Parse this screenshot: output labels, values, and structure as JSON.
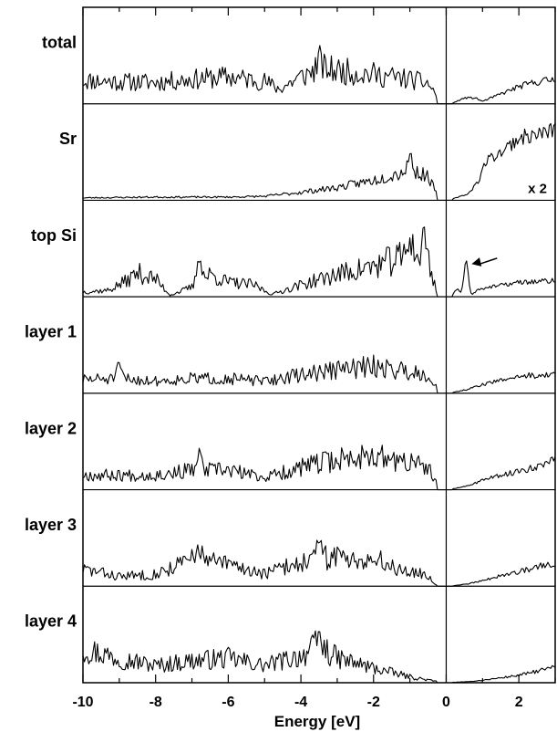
{
  "chart_data": {
    "type": "line",
    "xlabel": "Energy [eV]",
    "xlim": [
      -10,
      3
    ],
    "x_ticks": [
      -10,
      -8,
      -6,
      -4,
      -2,
      0,
      2
    ],
    "x_tick_labels": [
      "-10",
      "-8",
      "-6",
      "-4",
      "-2",
      "0",
      "2"
    ],
    "fermi_level": 0,
    "gap": [
      -0.28,
      0.18
    ],
    "panels": [
      {
        "label": "total",
        "scale": 0.55,
        "noise": 0.85,
        "seed": 11,
        "anchors": [
          [
            -10,
            0.48
          ],
          [
            -9,
            0.45
          ],
          [
            -8,
            0.44
          ],
          [
            -7,
            0.5
          ],
          [
            -6,
            0.55
          ],
          [
            -5,
            0.46
          ],
          [
            -4.6,
            0.3
          ],
          [
            -4,
            0.55
          ],
          [
            -3.5,
            0.72
          ],
          [
            -2,
            0.6
          ],
          [
            -1,
            0.5
          ],
          [
            -0.5,
            0.42
          ],
          [
            -0.3,
            0.2
          ]
        ],
        "peaks": [
          [
            -3.5,
            0.2
          ]
        ],
        "anchors_above": [
          [
            0.2,
            0.02
          ],
          [
            0.5,
            0.12
          ],
          [
            0.8,
            0.12
          ],
          [
            1.0,
            0.05
          ],
          [
            1.5,
            0.2
          ],
          [
            2,
            0.35
          ],
          [
            2.5,
            0.45
          ],
          [
            3,
            0.5
          ]
        ],
        "noise_above": 0.35
      },
      {
        "label": "Sr",
        "scale": 0.9,
        "noise": 0.55,
        "seed": 23,
        "anchors": [
          [
            -10,
            0.03
          ],
          [
            -8,
            0.04
          ],
          [
            -6,
            0.04
          ],
          [
            -5,
            0.05
          ],
          [
            -4,
            0.1
          ],
          [
            -3,
            0.16
          ],
          [
            -2,
            0.25
          ],
          [
            -1,
            0.38
          ],
          [
            -0.5,
            0.3
          ],
          [
            -0.3,
            0.12
          ]
        ],
        "peaks": [
          [
            -1.0,
            0.18
          ]
        ],
        "anchors_above": [
          [
            0.2,
            0.02
          ],
          [
            0.6,
            0.08
          ],
          [
            0.9,
            0.25
          ],
          [
            1.1,
            0.5
          ],
          [
            1.5,
            0.6
          ],
          [
            2,
            0.78
          ],
          [
            2.5,
            0.82
          ],
          [
            3,
            0.88
          ]
        ],
        "noise_above": 0.25,
        "annotation": "x 2"
      },
      {
        "label": "top Si",
        "scale": 0.9,
        "noise": 0.9,
        "seed": 37,
        "anchors": [
          [
            -10,
            0.06
          ],
          [
            -9.3,
            0.08
          ],
          [
            -8.8,
            0.2
          ],
          [
            -8.5,
            0.3
          ],
          [
            -8,
            0.22
          ],
          [
            -7.6,
            0.02
          ],
          [
            -7,
            0.12
          ],
          [
            -6.5,
            0.28
          ],
          [
            -6,
            0.18
          ],
          [
            -5.3,
            0.15
          ],
          [
            -4.8,
            0.03
          ],
          [
            -4,
            0.15
          ],
          [
            -3,
            0.28
          ],
          [
            -2,
            0.38
          ],
          [
            -1,
            0.52
          ],
          [
            -0.5,
            0.45
          ],
          [
            -0.3,
            0.12
          ]
        ],
        "peaks": [
          [
            -6.8,
            0.32
          ],
          [
            -1.0,
            0.25
          ],
          [
            -0.6,
            0.3
          ]
        ],
        "anchors_above": [
          [
            0.15,
            0.02
          ],
          [
            0.3,
            0.1
          ],
          [
            0.4,
            0.05
          ],
          [
            0.7,
            0.02
          ],
          [
            0.9,
            0.1
          ],
          [
            1.2,
            0.12
          ],
          [
            2,
            0.18
          ],
          [
            3,
            0.2
          ]
        ],
        "noise_above": 0.35,
        "peaks_above": [
          [
            0.55,
            0.42
          ]
        ],
        "arrow": {
          "from": [
            1.4,
            0.4
          ],
          "to": [
            0.7,
            0.34
          ]
        }
      },
      {
        "label": "layer 1",
        "scale": 0.55,
        "noise": 0.85,
        "seed": 51,
        "anchors": [
          [
            -10,
            0.28
          ],
          [
            -9,
            0.3
          ],
          [
            -8,
            0.25
          ],
          [
            -7,
            0.3
          ],
          [
            -6,
            0.3
          ],
          [
            -5,
            0.24
          ],
          [
            -4,
            0.38
          ],
          [
            -3,
            0.48
          ],
          [
            -2,
            0.55
          ],
          [
            -1,
            0.45
          ],
          [
            -0.5,
            0.38
          ],
          [
            -0.3,
            0.15
          ]
        ],
        "peaks": [
          [
            -9,
            0.25
          ]
        ],
        "anchors_above": [
          [
            0.2,
            0.02
          ],
          [
            0.6,
            0.08
          ],
          [
            1,
            0.18
          ],
          [
            2,
            0.35
          ],
          [
            3,
            0.38
          ]
        ],
        "noise_above": 0.35
      },
      {
        "label": "layer 2",
        "scale": 0.55,
        "noise": 0.85,
        "seed": 67,
        "anchors": [
          [
            -10,
            0.3
          ],
          [
            -9,
            0.3
          ],
          [
            -8,
            0.3
          ],
          [
            -7,
            0.4
          ],
          [
            -6,
            0.4
          ],
          [
            -5,
            0.25
          ],
          [
            -4,
            0.45
          ],
          [
            -3,
            0.62
          ],
          [
            -2,
            0.68
          ],
          [
            -1,
            0.55
          ],
          [
            -0.5,
            0.45
          ],
          [
            -0.3,
            0.15
          ]
        ],
        "peaks": [
          [
            -6.8,
            0.3
          ],
          [
            -2.2,
            0.2
          ]
        ],
        "anchors_above": [
          [
            0.2,
            0.02
          ],
          [
            0.6,
            0.08
          ],
          [
            1,
            0.2
          ],
          [
            2,
            0.38
          ],
          [
            3,
            0.6
          ]
        ],
        "noise_above": 0.35
      },
      {
        "label": "layer 3",
        "scale": 0.55,
        "noise": 0.9,
        "seed": 83,
        "anchors": [
          [
            -10,
            0.35
          ],
          [
            -9,
            0.2
          ],
          [
            -8,
            0.25
          ],
          [
            -7,
            0.55
          ],
          [
            -6,
            0.45
          ],
          [
            -5,
            0.25
          ],
          [
            -4,
            0.5
          ],
          [
            -3,
            0.62
          ],
          [
            -2,
            0.55
          ],
          [
            -1,
            0.3
          ],
          [
            -0.5,
            0.22
          ],
          [
            -0.3,
            0.05
          ]
        ],
        "peaks": [
          [
            -6.8,
            0.3
          ],
          [
            -3.5,
            0.3
          ]
        ],
        "anchors_above": [
          [
            0.2,
            0.01
          ],
          [
            0.6,
            0.05
          ],
          [
            1,
            0.12
          ],
          [
            2,
            0.3
          ],
          [
            3,
            0.48
          ]
        ],
        "noise_above": 0.35
      },
      {
        "label": "layer 4",
        "scale": 0.55,
        "noise": 0.9,
        "seed": 97,
        "anchors": [
          [
            -10,
            0.7
          ],
          [
            -9,
            0.5
          ],
          [
            -8,
            0.35
          ],
          [
            -7,
            0.45
          ],
          [
            -6,
            0.5
          ],
          [
            -5,
            0.35
          ],
          [
            -4,
            0.55
          ],
          [
            -3.5,
            0.75
          ],
          [
            -3,
            0.5
          ],
          [
            -2,
            0.3
          ],
          [
            -1,
            0.12
          ],
          [
            -0.3,
            0.03
          ]
        ],
        "peaks": [
          [
            -3.5,
            0.2
          ]
        ],
        "anchors_above": [
          [
            0.2,
            0.01
          ],
          [
            0.6,
            0.02
          ],
          [
            1,
            0.05
          ],
          [
            2,
            0.15
          ],
          [
            3,
            0.32
          ]
        ],
        "noise_above": 0.35
      }
    ]
  }
}
